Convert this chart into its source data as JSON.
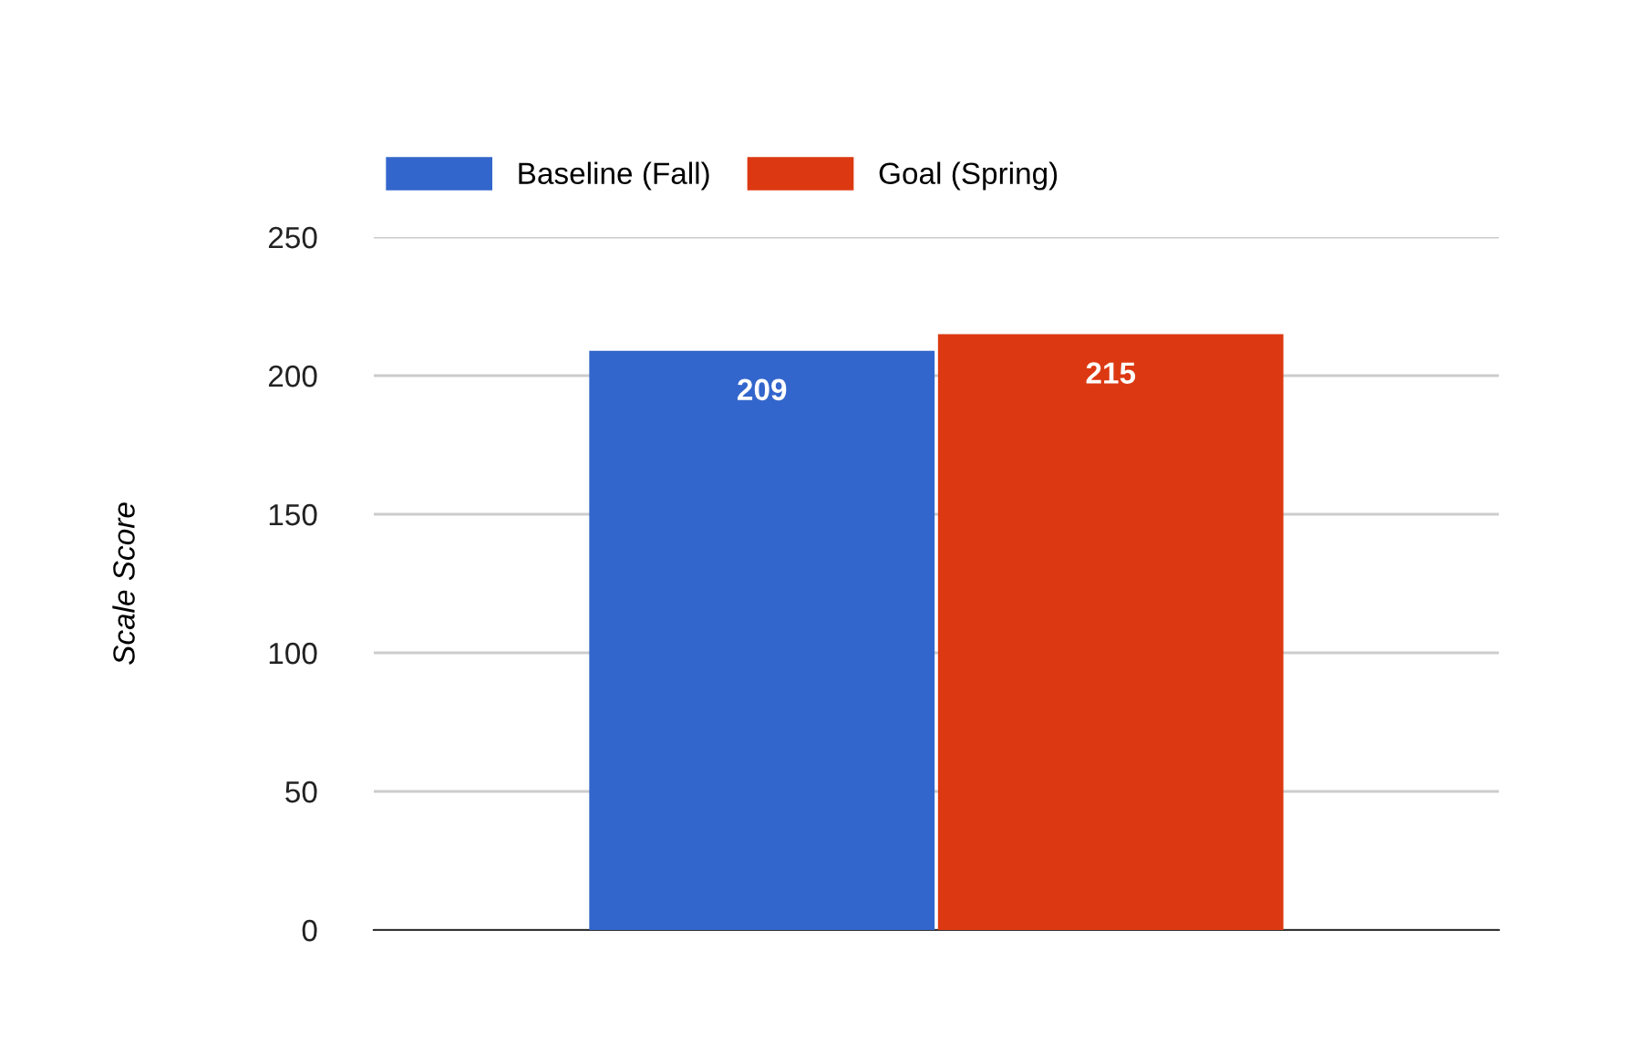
{
  "chart_data": {
    "type": "bar",
    "ylabel": "Scale Score",
    "categories": [
      null
    ],
    "series": [
      {
        "name": "Baseline (Fall)",
        "color": "#3366cc",
        "values": [
          209
        ]
      },
      {
        "name": "Goal (Spring)",
        "color": "#dc3912",
        "values": [
          215
        ]
      }
    ],
    "ylim": [
      0,
      250
    ],
    "yticks": [
      0,
      50,
      100,
      150,
      200,
      250
    ],
    "grid": "y",
    "legend": "top left",
    "data_labels": true
  }
}
